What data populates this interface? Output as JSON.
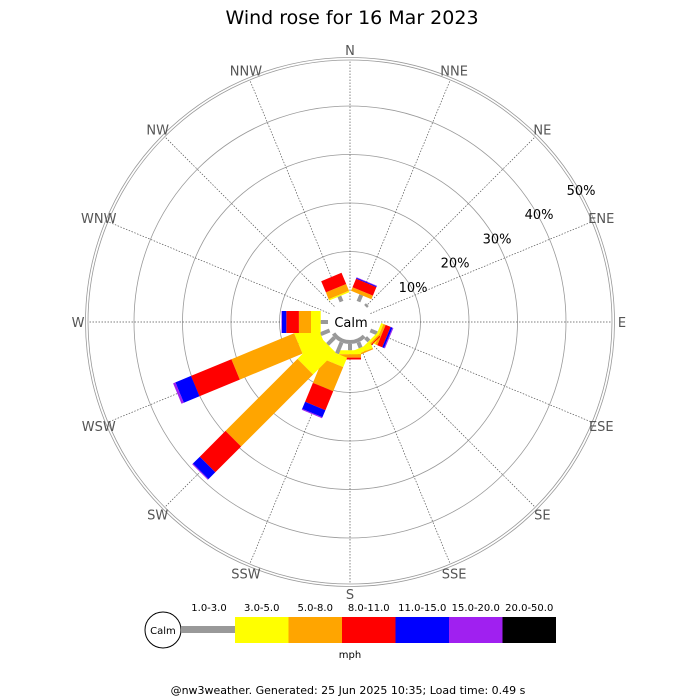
{
  "chart_data": {
    "type": "wind_rose",
    "title": "Wind rose for 16 Mar 2023",
    "calm_label": "Calm",
    "directions": [
      "N",
      "NNE",
      "NE",
      "ENE",
      "E",
      "ESE",
      "SE",
      "SSE",
      "S",
      "SSW",
      "SW",
      "WSW",
      "W",
      "WNW",
      "NW",
      "NNW"
    ],
    "radial_ticks": [
      10,
      20,
      30,
      40,
      50
    ],
    "radial_tick_labels": [
      "10%",
      "20%",
      "30%",
      "40%",
      "50%"
    ],
    "speed_bins": [
      {
        "label": "1.0-3.0",
        "color": "#999999"
      },
      {
        "label": "3.0-5.0",
        "color": "#ffff00"
      },
      {
        "label": "5.0-8.0",
        "color": "#ffa500"
      },
      {
        "label": "8.0-11.0",
        "color": "#ff0000"
      },
      {
        "label": "11.0-15.0",
        "color": "#0000ff"
      },
      {
        "label": "15.0-20.0",
        "color": "#a020f0"
      },
      {
        "label": "20.0-50.0",
        "color": "#000000"
      }
    ],
    "series_cumulative_percent": [
      {
        "direction": "NNE",
        "values": [
          1.5,
          1.5,
          2.3,
          4.2,
          4.4,
          4.5,
          4.5
        ]
      },
      {
        "direction": "NE",
        "values": [
          0.5,
          0.5,
          0.5,
          0.5,
          0.5,
          0.5,
          0.5
        ]
      },
      {
        "direction": "ESE",
        "values": [
          1.5,
          2.0,
          2.5,
          3.6,
          4.0,
          4.2,
          4.2
        ]
      },
      {
        "direction": "SE",
        "values": [
          1.0,
          1.5,
          1.8,
          2.0,
          2.0,
          2.0,
          2.0
        ]
      },
      {
        "direction": "SSE",
        "values": [
          1.2,
          2.2,
          2.5,
          2.5,
          2.5,
          2.5,
          2.5
        ]
      },
      {
        "direction": "S",
        "values": [
          1.3,
          2.1,
          2.8,
          3.2,
          3.2,
          3.2,
          3.2
        ]
      },
      {
        "direction": "SSW",
        "values": [
          2.5,
          4.6,
          10.0,
          14.2,
          15.8,
          16.0,
          16.0
        ]
      },
      {
        "direction": "SW",
        "values": [
          2.0,
          8.5,
          29.5,
          37.0,
          39.0,
          39.2,
          39.2
        ]
      },
      {
        "direction": "WSW",
        "values": [
          2.0,
          7.0,
          21.0,
          30.0,
          33.5,
          34.0,
          34.0
        ]
      },
      {
        "direction": "W",
        "values": [
          1.5,
          3.5,
          6.0,
          8.6,
          9.5,
          9.6,
          9.6
        ]
      },
      {
        "direction": "NNW",
        "values": [
          1.2,
          1.5,
          3.0,
          5.5,
          5.5,
          5.5,
          5.5
        ]
      }
    ],
    "legend_unit": "mph",
    "footer": "@nw3weather. Generated: 25 Jun 2025 10:35; Load time: 0.49 s",
    "grid": true,
    "legend_position": "bottom"
  }
}
